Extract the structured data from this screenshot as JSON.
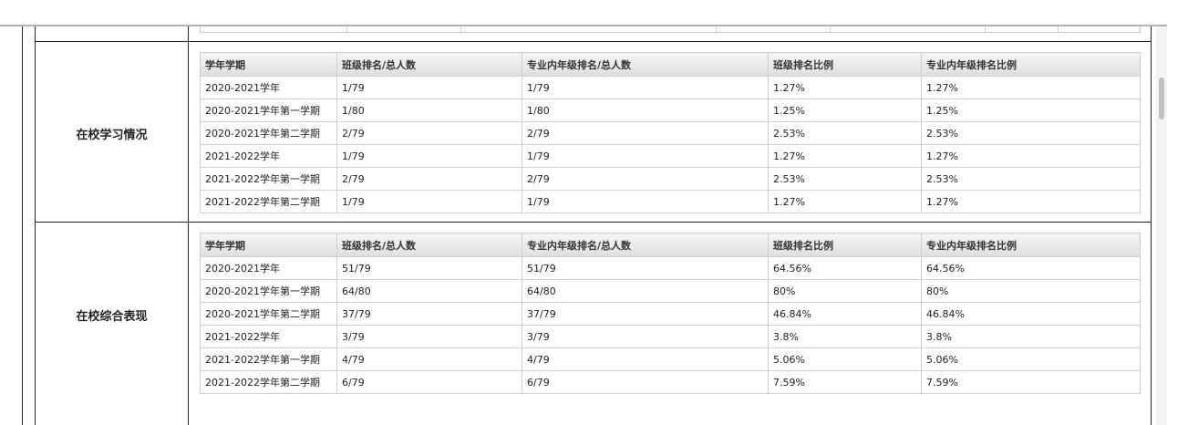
{
  "columns": [
    "学年学期",
    "班级排名/总人数",
    "专业内年级排名/总人数",
    "班级排名比例",
    "专业内年级排名比例"
  ],
  "sections": [
    {
      "label": "在校学习情况",
      "rows": [
        [
          "2020-2021学年",
          "1/79",
          "1/79",
          "1.27%",
          "1.27%"
        ],
        [
          "2020-2021学年第一学期",
          "1/80",
          "1/80",
          "1.25%",
          "1.25%"
        ],
        [
          "2020-2021学年第二学期",
          "2/79",
          "2/79",
          "2.53%",
          "2.53%"
        ],
        [
          "2021-2022学年",
          "1/79",
          "1/79",
          "1.27%",
          "1.27%"
        ],
        [
          "2021-2022学年第一学期",
          "2/79",
          "2/79",
          "2.53%",
          "2.53%"
        ],
        [
          "2021-2022学年第二学期",
          "1/79",
          "1/79",
          "1.27%",
          "1.27%"
        ]
      ]
    },
    {
      "label": "在校综合表现",
      "rows": [
        [
          "2020-2021学年",
          "51/79",
          "51/79",
          "64.56%",
          "64.56%"
        ],
        [
          "2020-2021学年第一学期",
          "64/80",
          "64/80",
          "80%",
          "80%"
        ],
        [
          "2020-2021学年第二学期",
          "37/79",
          "37/79",
          "46.84%",
          "46.84%"
        ],
        [
          "2021-2022学年",
          "3/79",
          "3/79",
          "3.8%",
          "3.8%"
        ],
        [
          "2021-2022学年第一学期",
          "4/79",
          "4/79",
          "5.06%",
          "5.06%"
        ],
        [
          "2021-2022学年第二学期",
          "6/79",
          "6/79",
          "7.59%",
          "7.59%"
        ]
      ]
    }
  ]
}
